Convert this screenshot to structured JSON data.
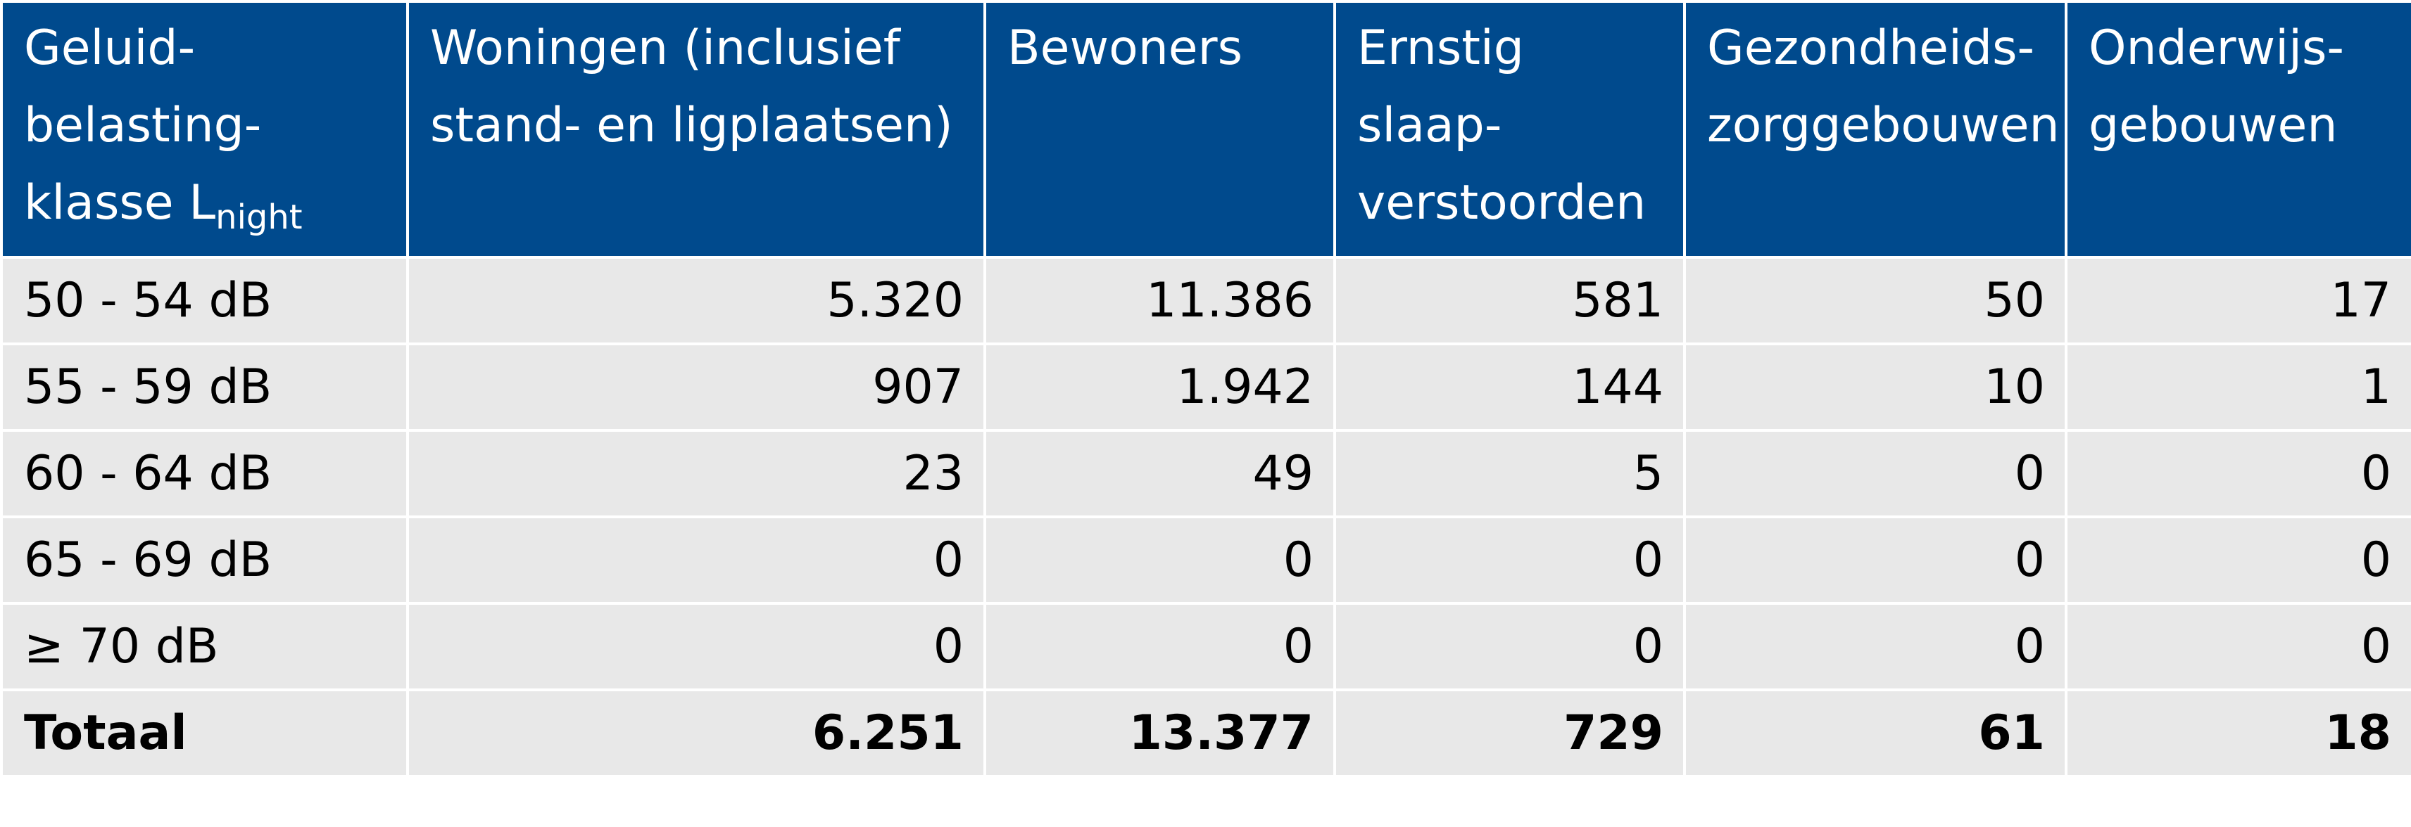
{
  "header": {
    "col0": {
      "text": "Geluid-belasting-klasse L",
      "subscript": "night"
    },
    "col1": "Woningen (inclusief stand- en ligplaatsen)",
    "col2": "Bewoners",
    "col3": "Ernstig slaap-verstoorden",
    "col4": "Gezondheids-zorggebouwen",
    "col5": "Onderwijs-gebouwen"
  },
  "rows": [
    {
      "klasse": "50 - 54 dB",
      "woningen": "5.320",
      "bewoners": "11.386",
      "slaapverstoorden": "581",
      "zorggebouwen": "50",
      "onderwijsgebouwen": "17"
    },
    {
      "klasse": "55 - 59 dB",
      "woningen": "907",
      "bewoners": "1.942",
      "slaapverstoorden": "144",
      "zorggebouwen": "10",
      "onderwijsgebouwen": "1"
    },
    {
      "klasse": "60 - 64 dB",
      "woningen": "23",
      "bewoners": "49",
      "slaapverstoorden": "5",
      "zorggebouwen": "0",
      "onderwijsgebouwen": "0"
    },
    {
      "klasse": "65 - 69 dB",
      "woningen": "0",
      "bewoners": "0",
      "slaapverstoorden": "0",
      "zorggebouwen": "0",
      "onderwijsgebouwen": "0"
    },
    {
      "klasse": "≥ 70 dB",
      "woningen": "0",
      "bewoners": "0",
      "slaapverstoorden": "0",
      "zorggebouwen": "0",
      "onderwijsgebouwen": "0"
    }
  ],
  "total": {
    "klasse": "Totaal",
    "woningen": "6.251",
    "bewoners": "13.377",
    "slaapverstoorden": "729",
    "zorggebouwen": "61",
    "onderwijsgebouwen": "18"
  },
  "colors": {
    "header_background": "#004a8d",
    "header_text": "#ffffff",
    "cell_background": "#e8e8e8",
    "cell_text": "#000000"
  }
}
